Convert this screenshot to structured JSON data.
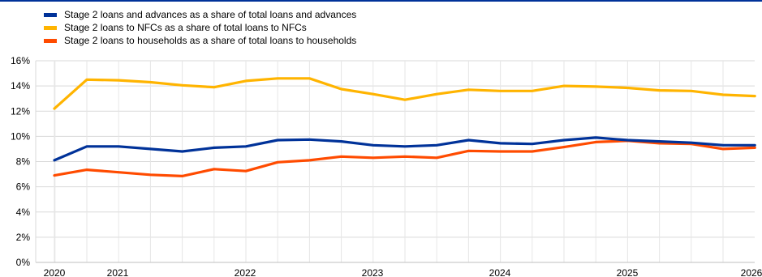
{
  "chart_data": {
    "type": "line",
    "title": "",
    "xlabel": "",
    "ylabel": "",
    "ylim": [
      0,
      16
    ],
    "yticks": [
      "0%",
      "2%",
      "4%",
      "6%",
      "8%",
      "10%",
      "12%",
      "14%",
      "16%"
    ],
    "x": [
      "2020-Q1",
      "2020-Q3",
      "2020-Q4",
      "2021-Q1",
      "2021-Q2",
      "2021-Q3",
      "2021-Q4",
      "2022-Q1",
      "2022-Q2",
      "2022-Q3",
      "2022-Q4",
      "2023-Q1",
      "2023-Q2",
      "2023-Q3",
      "2023-Q4",
      "2024-Q1",
      "2024-Q2",
      "2024-Q3",
      "2024-Q4",
      "2025-Q1",
      "2025-Q2",
      "2025-Q3",
      "2025-Q4"
    ],
    "year_labels": [
      "2020",
      "2021",
      "2022",
      "2023",
      "2024",
      "2025",
      "2026"
    ],
    "grid": true,
    "legend_position": "top-left",
    "series": [
      {
        "name": "Stage 2 loans and advances as a share of total loans and advances",
        "color": "#003299",
        "values": [
          8.1,
          9.2,
          9.2,
          9.0,
          8.8,
          9.1,
          9.2,
          9.7,
          9.75,
          9.6,
          9.3,
          9.2,
          9.3,
          9.7,
          9.45,
          9.4,
          9.7,
          9.9,
          9.7,
          9.6,
          9.5,
          9.3,
          9.3
        ]
      },
      {
        "name": "Stage 2 loans to NFCs as a share of total loans to NFCs",
        "color": "#FFB400",
        "values": [
          12.2,
          14.5,
          14.45,
          14.3,
          14.05,
          13.9,
          14.4,
          14.6,
          14.6,
          13.75,
          13.35,
          12.9,
          13.35,
          13.7,
          13.6,
          13.6,
          14.0,
          13.95,
          13.85,
          13.65,
          13.6,
          13.3,
          13.2
        ]
      },
      {
        "name": "Stage 2 loans to households as a share of total loans to households",
        "color": "#FF4B00",
        "values": [
          6.9,
          7.35,
          7.15,
          6.95,
          6.85,
          7.4,
          7.25,
          7.95,
          8.1,
          8.4,
          8.3,
          8.4,
          8.3,
          8.85,
          8.8,
          8.8,
          9.15,
          9.55,
          9.65,
          9.45,
          9.4,
          9.0,
          9.1
        ]
      }
    ]
  }
}
